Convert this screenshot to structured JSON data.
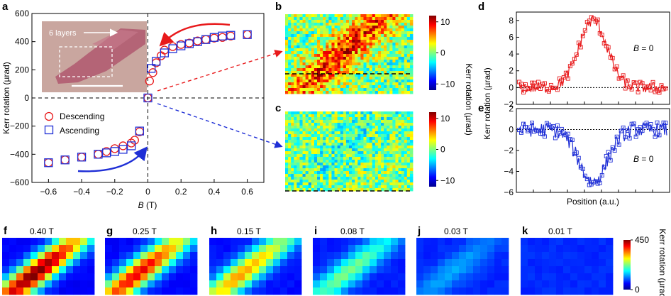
{
  "panel_labels": {
    "a": "a",
    "b": "b",
    "c": "c",
    "d": "d",
    "e": "e",
    "f": "f",
    "g": "g",
    "h": "h",
    "i": "i",
    "j": "j",
    "k": "k"
  },
  "colors": {
    "descending": "#e8191b",
    "ascending": "#1f2fd6",
    "axis": "#000000"
  },
  "chart_data": [
    {
      "type": "scatter",
      "panel": "a",
      "xlabel_var": "B",
      "xlabel_unit": " (T)",
      "ylabel": "Kerr rotation (µrad)",
      "xlim": [
        -0.7,
        0.7
      ],
      "ylim": [
        -600,
        600
      ],
      "xticks": [
        "−0.6",
        "−0.4",
        "−0.2",
        "0",
        "0.2",
        "0.4",
        "0.6"
      ],
      "xtick_values": [
        -0.6,
        -0.4,
        -0.2,
        0,
        0.2,
        0.4,
        0.6
      ],
      "yticks": [
        "600",
        "400",
        "200",
        "0",
        "−200",
        "−400",
        "−600"
      ],
      "ytick_values": [
        600,
        400,
        200,
        0,
        -200,
        -400,
        -600
      ],
      "legend": {
        "descending": "Descending",
        "ascending": "Ascending",
        "placement": "center-left"
      },
      "inset": {
        "label": "6 layers"
      },
      "series": [
        {
          "name": "Descending",
          "marker": "circle",
          "x": [
            0.6,
            0.5,
            0.45,
            0.4,
            0.35,
            0.3,
            0.25,
            0.2,
            0.15,
            0.1,
            0.08,
            0.05,
            0.03,
            0.01,
            0.0,
            -0.05,
            -0.08,
            -0.1,
            -0.15,
            -0.2,
            -0.25,
            -0.3,
            -0.4,
            -0.5,
            -0.6
          ],
          "y": [
            450,
            440,
            430,
            425,
            415,
            405,
            390,
            380,
            365,
            340,
            300,
            250,
            180,
            120,
            0,
            -240,
            -300,
            -320,
            -340,
            -360,
            -380,
            -400,
            -420,
            -440,
            -460
          ]
        },
        {
          "name": "Ascending",
          "marker": "square",
          "x": [
            -0.6,
            -0.5,
            -0.4,
            -0.3,
            -0.25,
            -0.2,
            -0.15,
            -0.1,
            -0.05,
            0.0,
            0.02,
            0.05,
            0.1,
            0.15,
            0.2,
            0.25,
            0.3,
            0.35,
            0.4,
            0.45,
            0.5,
            0.6
          ],
          "y": [
            -460,
            -440,
            -420,
            -400,
            -390,
            -380,
            -365,
            -340,
            -235,
            0,
            210,
            260,
            320,
            350,
            370,
            385,
            400,
            415,
            430,
            440,
            445,
            450
          ]
        }
      ]
    },
    {
      "type": "heatmap",
      "panel": "b",
      "colorbar_label": "Kerr rotation (µrad)",
      "colorbar_ticks": [
        "10",
        "0",
        "−10"
      ],
      "colorbar_tick_values": [
        10,
        0,
        -10
      ],
      "zlim": [
        -12,
        12
      ]
    },
    {
      "type": "heatmap",
      "panel": "c",
      "colorbar_label": "Kerr rotation (µrad)",
      "colorbar_ticks": [
        "10",
        "0",
        "−10"
      ],
      "colorbar_tick_values": [
        10,
        0,
        -10
      ],
      "zlim": [
        -12,
        12
      ]
    },
    {
      "type": "line",
      "panel": "d",
      "ylim": [
        -2,
        9
      ],
      "yticks": [
        "8",
        "6",
        "4",
        "2",
        "0",
        "−2"
      ],
      "ytick_values": [
        8,
        6,
        4,
        2,
        0,
        -2
      ],
      "annotation_var": "B",
      "annotation_value": " = 0",
      "peak": 8.0
    },
    {
      "type": "line",
      "panel": "e",
      "ylim": [
        -6,
        2
      ],
      "yticks": [
        "2",
        "0",
        "−2",
        "−4",
        "−6"
      ],
      "ytick_values": [
        2,
        0,
        -2,
        -4,
        -6
      ],
      "annotation_var": "B",
      "annotation_value": " = 0",
      "peak": -5.0,
      "shared_ylabel": "Kerr rotation (µrad)",
      "xlabel": "Position (a.u.)"
    },
    {
      "type": "heatmap",
      "panel": "f-k",
      "fields": [
        "0.40 T",
        "0.25 T",
        "0.15 T",
        "0.08 T",
        "0.03 T",
        "0.01 T"
      ],
      "peak_values": [
        440,
        380,
        300,
        190,
        95,
        35
      ],
      "zlim": [
        0,
        450
      ],
      "colorbar_ticks": [
        "450",
        "0"
      ],
      "colorbar_tick_values": [
        450,
        0
      ],
      "colorbar_label": "Kerr rotation (µrad)"
    }
  ]
}
